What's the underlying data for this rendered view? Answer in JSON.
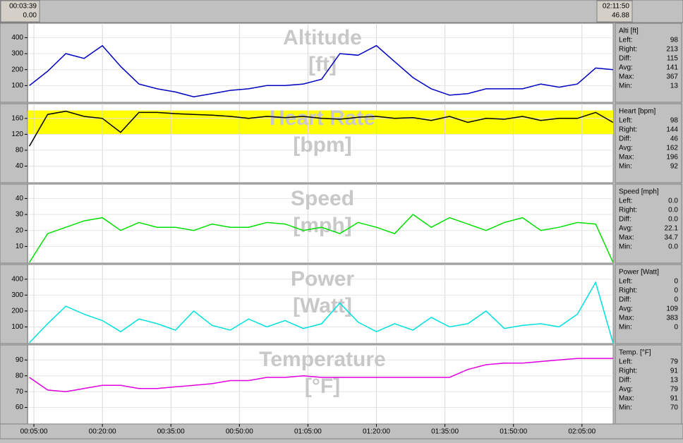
{
  "header": {
    "left_time": "00:03:39",
    "left_dist": "0.00",
    "right_time": "02:11:50",
    "right_dist": "46.88"
  },
  "x_axis": {
    "xlim": [
      3.65,
      131.83
    ],
    "xticks": [
      {
        "value": 5,
        "label": "00:05:00"
      },
      {
        "value": 20,
        "label": "00:20:00"
      },
      {
        "value": 35,
        "label": "00:35:00"
      },
      {
        "value": 50,
        "label": "00:50:00"
      },
      {
        "value": 65,
        "label": "01:05:00"
      },
      {
        "value": 80,
        "label": "01:20:00"
      },
      {
        "value": 95,
        "label": "01:35:00"
      },
      {
        "value": 110,
        "label": "01:50:00"
      },
      {
        "value": 125,
        "label": "02:05:00"
      }
    ],
    "x": [
      4,
      8,
      12,
      16,
      20,
      24,
      28,
      32,
      36,
      40,
      44,
      48,
      52,
      56,
      60,
      64,
      68,
      72,
      76,
      80,
      84,
      88,
      92,
      96,
      100,
      104,
      108,
      112,
      116,
      120,
      124,
      128,
      131.8
    ]
  },
  "chart_data": [
    {
      "type": "line",
      "title": "Altitude",
      "unit": "[ft]",
      "color": "#0000c0",
      "ylim": [
        0,
        490
      ],
      "yticks": [
        100,
        200,
        300,
        400
      ],
      "values": [
        100,
        190,
        300,
        270,
        350,
        220,
        110,
        80,
        60,
        30,
        50,
        70,
        80,
        100,
        100,
        110,
        140,
        300,
        290,
        350,
        250,
        150,
        80,
        40,
        50,
        80,
        80,
        80,
        110,
        90,
        110,
        210,
        200
      ],
      "stats_title": "Alti [ft]",
      "stats": [
        {
          "label": "Left:",
          "value": "98"
        },
        {
          "label": "Right:",
          "value": "213"
        },
        {
          "label": "Diff:",
          "value": "115"
        },
        {
          "label": "Avg:",
          "value": "141"
        },
        {
          "label": "Max:",
          "value": "367"
        },
        {
          "label": "Min:",
          "value": "13"
        }
      ]
    },
    {
      "type": "line",
      "title": "Heart Rate",
      "unit": "[bpm]",
      "color": "#000000",
      "ylim": [
        0,
        197
      ],
      "yticks": [
        40,
        80,
        120,
        160
      ],
      "band": [
        120,
        180
      ],
      "band_color": "#ffff00",
      "values": [
        90,
        170,
        178,
        165,
        160,
        125,
        175,
        175,
        172,
        170,
        168,
        165,
        160,
        165,
        162,
        165,
        160,
        158,
        163,
        165,
        160,
        162,
        155,
        165,
        150,
        160,
        158,
        165,
        155,
        160,
        160,
        175,
        150
      ],
      "stats_title": "Heart [bpm]",
      "stats": [
        {
          "label": "Left:",
          "value": "98"
        },
        {
          "label": "Right:",
          "value": "144"
        },
        {
          "label": "Diff:",
          "value": "46"
        },
        {
          "label": "Avg:",
          "value": "162"
        },
        {
          "label": "Max:",
          "value": "196"
        },
        {
          "label": "Min:",
          "value": "92"
        }
      ]
    },
    {
      "type": "line",
      "title": "Speed",
      "unit": "[mph]",
      "color": "#00e000",
      "ylim": [
        0,
        49
      ],
      "yticks": [
        10,
        20,
        30,
        40
      ],
      "values": [
        0,
        18,
        22,
        26,
        28,
        20,
        25,
        22,
        22,
        20,
        24,
        22,
        22,
        25,
        24,
        20,
        22,
        18,
        25,
        22,
        18,
        30,
        22,
        28,
        24,
        20,
        25,
        28,
        20,
        22,
        25,
        24,
        0
      ],
      "stats_title": "Speed [mph]",
      "stats": [
        {
          "label": "Left:",
          "value": "0.0"
        },
        {
          "label": "Right:",
          "value": "0.0"
        },
        {
          "label": "Diff:",
          "value": "0.0"
        },
        {
          "label": "Avg:",
          "value": "22.1"
        },
        {
          "label": "Max:",
          "value": "34.7"
        },
        {
          "label": "Min:",
          "value": "0.0"
        }
      ]
    },
    {
      "type": "line",
      "title": "Power",
      "unit": "[Watt]",
      "color": "#00e0e0",
      "ylim": [
        0,
        492
      ],
      "yticks": [
        100,
        200,
        300,
        400
      ],
      "values": [
        0,
        120,
        230,
        180,
        140,
        70,
        150,
        120,
        80,
        200,
        110,
        80,
        150,
        100,
        140,
        90,
        120,
        250,
        130,
        70,
        120,
        80,
        160,
        100,
        120,
        200,
        90,
        110,
        120,
        100,
        180,
        380,
        0
      ],
      "stats_title": "Power [Watt]",
      "stats": [
        {
          "label": "Left:",
          "value": "0"
        },
        {
          "label": "Right:",
          "value": "0"
        },
        {
          "label": "Diff:",
          "value": "0"
        },
        {
          "label": "Avg:",
          "value": "109"
        },
        {
          "label": "Max:",
          "value": "383"
        },
        {
          "label": "Min:",
          "value": "0"
        }
      ]
    },
    {
      "type": "line",
      "title": "Temperature",
      "unit": "[°F]",
      "color": "#e000e0",
      "ylim": [
        50,
        99.5
      ],
      "yticks": [
        60,
        70,
        80,
        90
      ],
      "values": [
        79,
        71,
        70,
        72,
        74,
        74,
        72,
        72,
        73,
        74,
        75,
        77,
        77,
        79,
        79,
        80,
        79,
        79,
        79,
        79,
        79,
        79,
        79,
        79,
        84,
        87,
        88,
        88,
        89,
        90,
        91,
        91,
        91
      ],
      "stats_title": "Temp. [°F]",
      "stats": [
        {
          "label": "Left:",
          "value": "79"
        },
        {
          "label": "Right:",
          "value": "91"
        },
        {
          "label": "Diff:",
          "value": "13"
        },
        {
          "label": "Avg:",
          "value": "79"
        },
        {
          "label": "Max:",
          "value": "91"
        },
        {
          "label": "Min:",
          "value": "70"
        }
      ]
    }
  ]
}
